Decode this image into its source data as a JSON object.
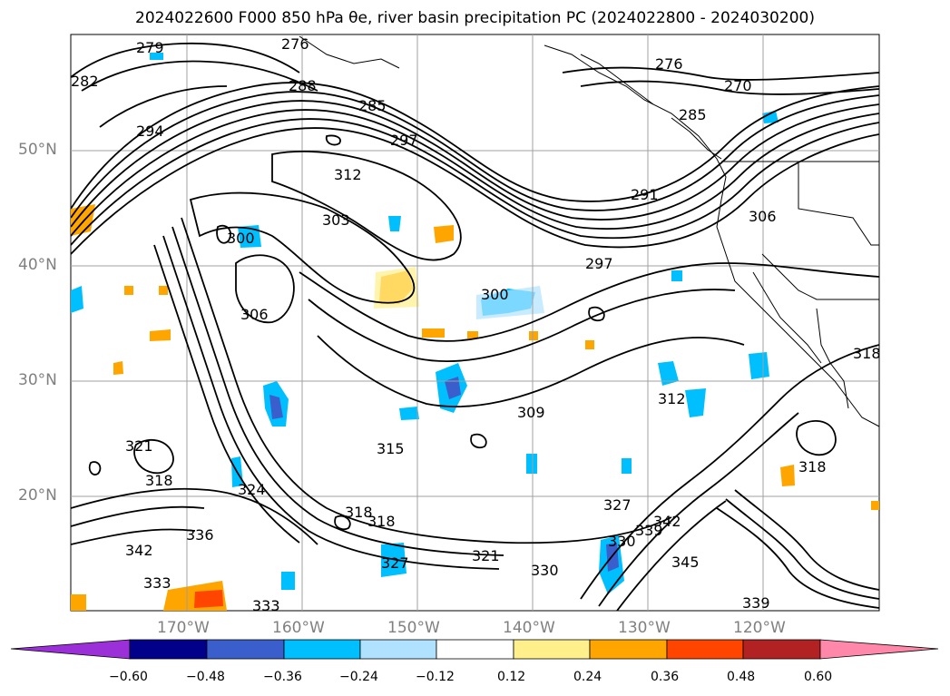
{
  "title": "2024022600 F000 850 hPa θe, river basin precipitation PC (2024022800 - 2024030200)",
  "map": {
    "projection": "lat-lon",
    "region": "North Pacific / western North America",
    "lat_labels": [
      "50°N",
      "40°N",
      "30°N",
      "20°N"
    ],
    "lon_labels": [
      "170°W",
      "160°W",
      "150°W",
      "140°W",
      "130°W",
      "120°W"
    ],
    "gridlines": true,
    "contour_variable": "850 hPa θe",
    "contour_labels": [
      "279",
      "276",
      "282",
      "288",
      "285",
      "294",
      "297",
      "276",
      "270",
      "285",
      "312",
      "303",
      "291",
      "306",
      "300",
      "297",
      "300",
      "306",
      "309",
      "315",
      "318",
      "321",
      "318",
      "324",
      "327",
      "330",
      "339",
      "342",
      "345",
      "336",
      "333",
      "333",
      "330",
      "321",
      "318",
      "327",
      "339",
      "342",
      "318",
      "318",
      "312"
    ],
    "fill_variable": "river basin precipitation PC"
  },
  "colorbar": {
    "ticks": [
      "−0.60",
      "−0.48",
      "−0.36",
      "−0.24",
      "−0.12",
      "0.12",
      "0.24",
      "0.36",
      "0.48",
      "0.60"
    ],
    "colors": [
      "#9b30d9",
      "#00008b",
      "#3a5fcd",
      "#00bfff",
      "#b0e2ff",
      "#ffffff",
      "#fff08b",
      "#ffa500",
      "#ff4500",
      "#b22222",
      "#ff88aa"
    ],
    "extend": "both"
  }
}
